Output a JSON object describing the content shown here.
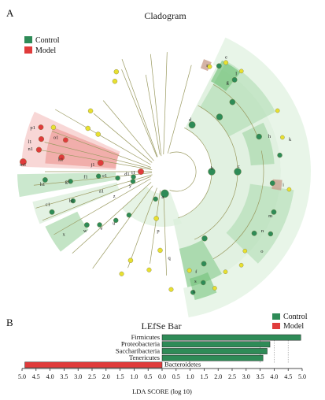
{
  "figure": {
    "panel_a_label": "A",
    "panel_b_label": "B"
  },
  "colors": {
    "control": "#2e8b57",
    "model": "#e03b3b",
    "node_yellow": "#e8e030",
    "branch": "#9a9a60",
    "sector_light": "#dcefdc",
    "sector_mid": "#a9d9ad",
    "sector_dark": "#6bbf73",
    "red_light": "#f7d3d1",
    "red_mid": "#ee9c98"
  },
  "chart_data": [
    {
      "type": "cladogram",
      "title": "Cladogram",
      "legend": [
        {
          "name": "Control",
          "color": "#2e8b57"
        },
        {
          "name": "Model",
          "color": "#e03b3b"
        }
      ],
      "legend_position": "top-left",
      "labels": {
        "control": [
          "a",
          "b",
          "c",
          "d",
          "e",
          "f",
          "g",
          "h",
          "i",
          "k",
          "l",
          "m",
          "n",
          "o",
          "p",
          "q",
          "r",
          "s",
          "t",
          "u",
          "v",
          "w",
          "x",
          "y",
          "z",
          "a1",
          "b1",
          "c1",
          "d1",
          "e1",
          "f1",
          "g1",
          "h1"
        ],
        "model": [
          "i1",
          "j1",
          "k1",
          "l1",
          "m1",
          "n1",
          "o1",
          "p1"
        ]
      }
    },
    {
      "type": "bar",
      "orientation": "horizontal",
      "title": "LEfSe Bar",
      "xlabel": "LDA SCORE (log 10)",
      "ylabel": "",
      "xlim": [
        -5.0,
        5.0
      ],
      "x_ticks": [
        5.0,
        4.5,
        4.0,
        3.5,
        3.0,
        2.5,
        2.0,
        1.5,
        1.0,
        0.5,
        0.0,
        0.5,
        1.0,
        1.5,
        2.0,
        2.5,
        3.0,
        3.5,
        4.0,
        4.5,
        5.0
      ],
      "legend": [
        {
          "name": "Control",
          "color": "#2e8b57"
        },
        {
          "name": "Model",
          "color": "#e03b3b"
        }
      ],
      "legend_position": "top-right",
      "categories": [
        "Firmicutes",
        "Proteobacteria",
        "Saccharibacteria",
        "Tenericutes",
        "Bacteroidetes"
      ],
      "groups": [
        "Control",
        "Control",
        "Control",
        "Control",
        "Model"
      ],
      "values": [
        4.95,
        3.85,
        3.75,
        3.6,
        -4.9
      ]
    }
  ]
}
